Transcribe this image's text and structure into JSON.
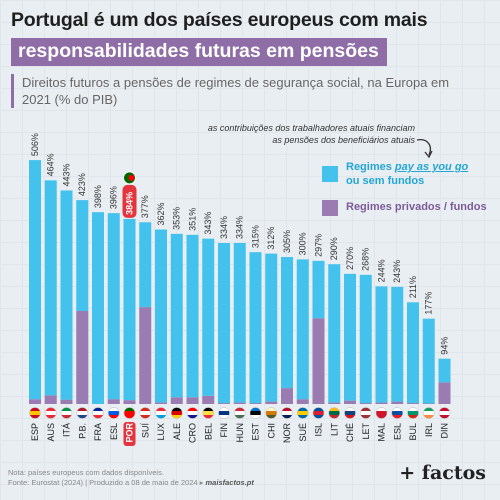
{
  "title_line1": "Portugal é um dos países europeus com mais",
  "title_line2": "responsabilidades futuras em pensões",
  "subtitle": "Direitos futuros a pensões de regimes de segurança social, na Europa em 2021 (% do PIB)",
  "annotation": "as contribuições dos trabalhadores atuais financiam as pensões dos beneficiários atuais",
  "legend": {
    "payg_prefix": "Regimes ",
    "payg_italic": "pay as you go",
    "payg_suffix": "ou sem fundos",
    "private": "Regimes privados / fundos"
  },
  "footer": {
    "note": "Nota: países europeus com dados disponíveis.",
    "source": "Fonte: Eurostat (2024)  |  Produzido a 08 de maio de 2024 ▸ ",
    "site": "maisfactos.pt"
  },
  "logo": "+ factos",
  "colors": {
    "payg": "#43c2ee",
    "private": "#9a7cb3",
    "highlight": "#e4343e",
    "accent": "#8f6da6"
  },
  "chart_data": {
    "type": "bar",
    "stacked": true,
    "categories": [
      "ESP",
      "AUS",
      "ITÁ",
      "P.B.",
      "FRA",
      "ESL",
      "POR",
      "SUÍ",
      "LUX",
      "ALE",
      "CRO",
      "BEL",
      "FIN",
      "HUN",
      "EST",
      "CHI",
      "NOR",
      "SUÉ",
      "ISL",
      "LIT",
      "CHÉ",
      "LET",
      "MAL",
      "ESL",
      "BUL",
      "IRL",
      "DIN"
    ],
    "total_labels": [
      "506%",
      "464%",
      "443%",
      "423%",
      "398%",
      "396%",
      "384%",
      "377%",
      "362%",
      "353%",
      "351%",
      "343%",
      "334%",
      "334%",
      "315%",
      "312%",
      "305%",
      "300%",
      "297%",
      "290%",
      "270%",
      "268%",
      "244%",
      "243%",
      "211%",
      "177%",
      "94%"
    ],
    "series": [
      {
        "name": "Regimes pay as you go ou sem fundos",
        "values": [
          496,
          446,
          434,
          230,
          398,
          386,
          376,
          176,
          359,
          339,
          337,
          326,
          332,
          331,
          313,
          307,
          272,
          290,
          119,
          287,
          263,
          266,
          241,
          238,
          209,
          176,
          49
        ]
      },
      {
        "name": "Regimes privados / fundos",
        "values": [
          10,
          18,
          9,
          193,
          0,
          10,
          8,
          201,
          3,
          14,
          14,
          17,
          2,
          3,
          2,
          5,
          33,
          10,
          178,
          3,
          7,
          2,
          3,
          5,
          2,
          1,
          45
        ]
      }
    ],
    "highlight_category": "POR",
    "ylim": [
      0,
      520
    ],
    "grid": false,
    "legend_position": "top-right"
  }
}
